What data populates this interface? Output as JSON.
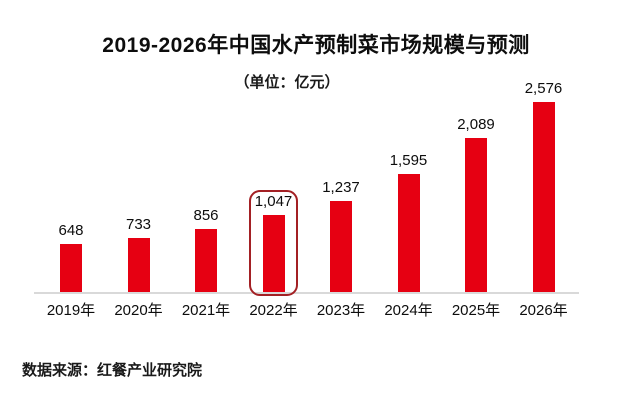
{
  "chart_data": {
    "type": "bar",
    "title": "2019-2026年中国水产预制菜市场规模与预测",
    "subtitle": "（单位：亿元）",
    "categories": [
      "2019年",
      "2020年",
      "2021年",
      "2022年",
      "2023年",
      "2024年",
      "2025年",
      "2026年"
    ],
    "values": [
      648,
      733,
      856,
      1047,
      1237,
      1595,
      2089,
      2576
    ],
    "value_labels": [
      "648",
      "733",
      "856",
      "1,047",
      "1,237",
      "1,595",
      "2,089",
      "2,576"
    ],
    "highlighted_index": 3,
    "highlighted_category": "2022年",
    "bar_color": "#e60012",
    "highlight_border_color": "#a32024",
    "axis_line_color": "#d9d9d9",
    "xlabel": "",
    "ylabel": "",
    "ylim": [
      0,
      2576
    ],
    "grid": "off",
    "legend": "none"
  },
  "footer": {
    "source": "数据来源：红餐产业研究院"
  }
}
